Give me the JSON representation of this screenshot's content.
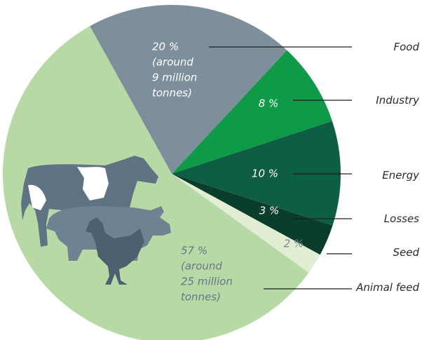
{
  "chart_data": {
    "type": "pie",
    "categories": [
      "Food",
      "Industry",
      "Energy",
      "Losses",
      "Seed",
      "Animal feed"
    ],
    "values": [
      20,
      8,
      10,
      3,
      2,
      57
    ],
    "value_labels": [
      [
        "20 %",
        "(around",
        "9 million",
        "tonnes)"
      ],
      [
        "8 %"
      ],
      [
        "10 %"
      ],
      [
        "3 %"
      ],
      [
        "2 %"
      ],
      [
        "57 %",
        "(around",
        "25 million",
        "tonnes)"
      ]
    ],
    "colors": [
      "#7d8f9b",
      "#0f9a48",
      "#0d5e45",
      "#0b3d2b",
      "#e2eed3",
      "#b7d9a5"
    ]
  }
}
